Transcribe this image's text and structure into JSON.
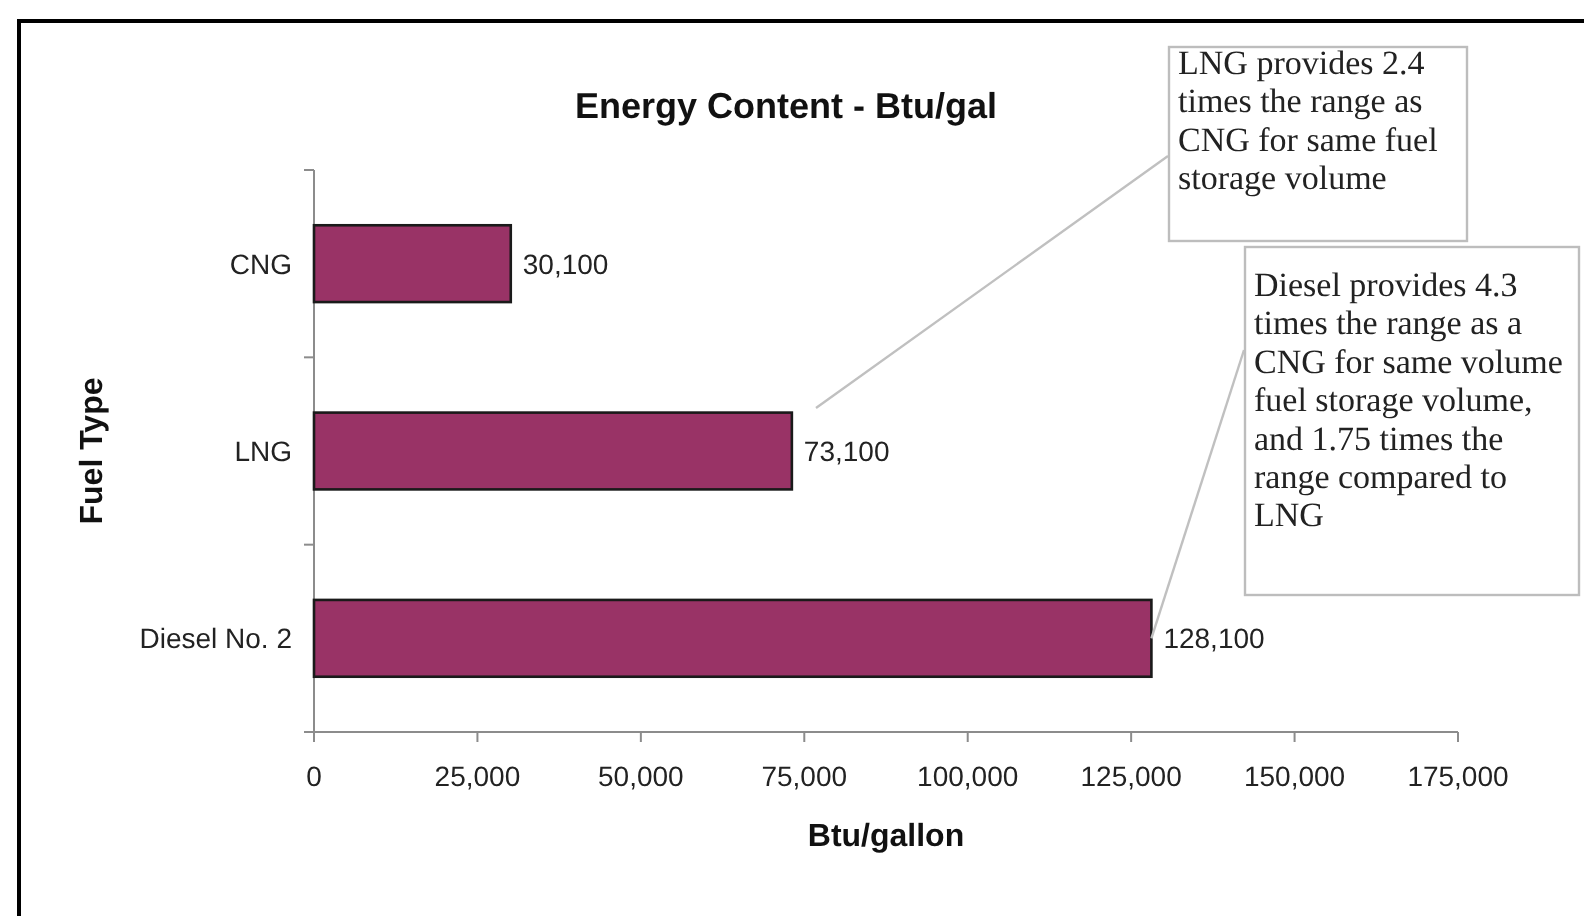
{
  "chart_data": {
    "type": "bar",
    "orientation": "horizontal",
    "title": "Energy Content - Btu/gal",
    "xlabel": "Btu/gallon",
    "ylabel": "Fuel Type",
    "categories": [
      "CNG",
      "LNG",
      "Diesel No. 2"
    ],
    "values": [
      30100,
      73100,
      128100
    ],
    "value_labels": [
      "30,100",
      "73,100",
      "128,100"
    ],
    "color": "#993366",
    "xlim": [
      0,
      175000
    ],
    "xticks": [
      0,
      {
        "value": 25000,
        "label": "25,000"
      },
      {
        "value": 50000,
        "label": "50,000"
      },
      {
        "value": 75000,
        "label": "75,000"
      },
      {
        "value": 100000,
        "label": "100,000"
      },
      {
        "value": 125000,
        "label": "125,000"
      },
      {
        "value": 150000,
        "label": "150,000"
      },
      {
        "value": 175000,
        "label": "175,000"
      }
    ],
    "annotations": [
      "LNG provides 2.4 times the range as CNG for same fuel storage volume",
      {
        "text": "Diesel provides 4.3 times the range as a CNG for same volume fuel storage volume, and 1.75 times the range compared to LNG",
        "x": 128100,
        "y": "Diesel No. 2"
      }
    ]
  }
}
